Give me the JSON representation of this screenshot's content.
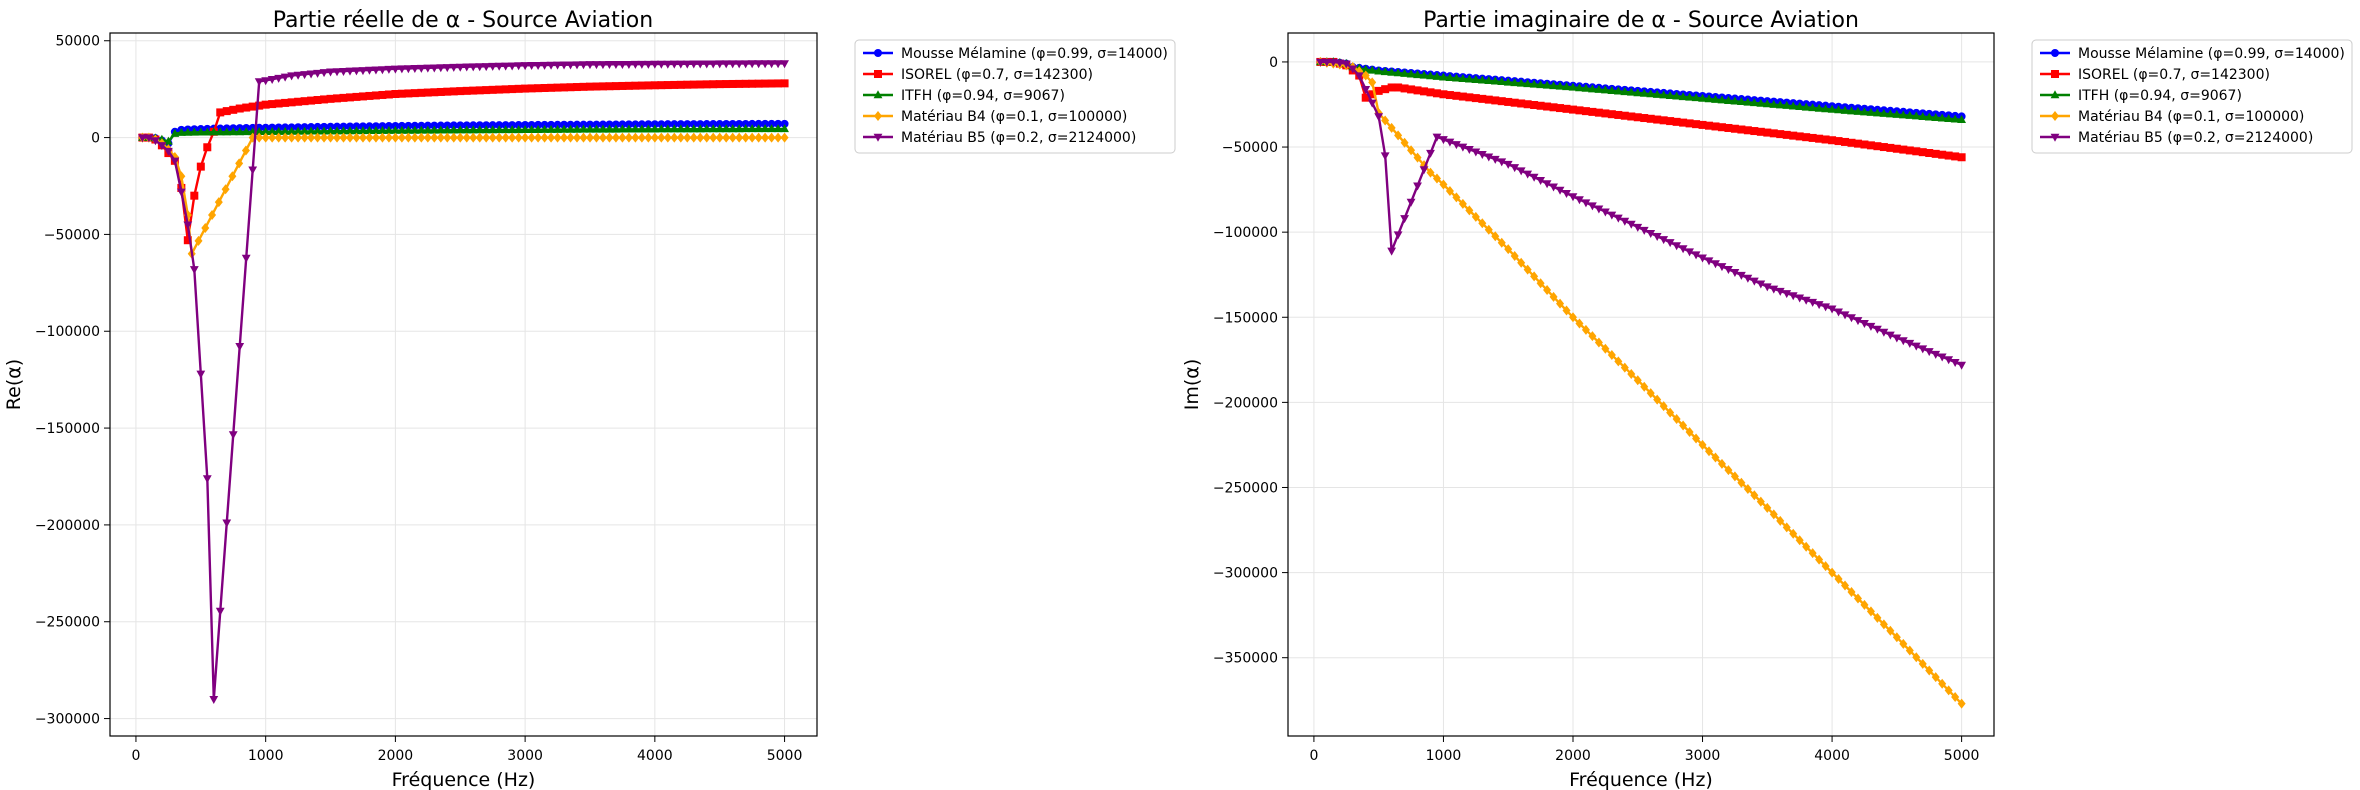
{
  "colors": {
    "Mousse": "#0000ff",
    "ISOREL": "#ff0000",
    "ITFH": "#008000",
    "B4": "#ffa500",
    "B5": "#800080",
    "grid": "#e5e5e5",
    "axes": "#000000"
  },
  "chart_data": [
    {
      "type": "line",
      "title": "Partie réelle de α - Source Aviation",
      "xlabel": "Fréquence (Hz)",
      "ylabel": "Re(α)",
      "xlim": [
        -200,
        5250
      ],
      "ylim": [
        -309000,
        54000
      ],
      "xticks": [
        0,
        1000,
        2000,
        3000,
        4000,
        5000
      ],
      "xtick_labels": [
        "0",
        "1000",
        "2000",
        "3000",
        "4000",
        "5000"
      ],
      "yticks": [
        50000,
        0,
        -50000,
        -100000,
        -150000,
        -200000,
        -250000,
        -300000
      ],
      "ytick_labels": [
        "50000",
        "0",
        "−50000",
        "−100000",
        "−150000",
        "−200000",
        "−250000",
        "−300000"
      ],
      "grid": true,
      "legend": "outside-upper-right",
      "series": [
        {
          "name": "Mousse Mélamine (φ=0.99, σ=14000)",
          "color_key": "Mousse",
          "marker": "circle",
          "points": [
            [
              50,
              0
            ],
            [
              100,
              0
            ],
            [
              150,
              -300
            ],
            [
              200,
              -1500
            ],
            [
              250,
              -3000
            ],
            [
              300,
              3000
            ],
            [
              350,
              4000
            ],
            [
              400,
              4200
            ],
            [
              450,
              4300
            ],
            [
              500,
              4400
            ],
            [
              600,
              4600
            ],
            [
              800,
              4900
            ],
            [
              1000,
              5100
            ],
            [
              1500,
              5600
            ],
            [
              2000,
              6000
            ],
            [
              2500,
              6300
            ],
            [
              3000,
              6500
            ],
            [
              3500,
              6700
            ],
            [
              4000,
              6900
            ],
            [
              4500,
              7000
            ],
            [
              5000,
              7100
            ]
          ]
        },
        {
          "name": "ISOREL (φ=0.7, σ=142300)",
          "color_key": "ISOREL",
          "marker": "square",
          "points": [
            [
              50,
              0
            ],
            [
              100,
              0
            ],
            [
              150,
              -1000
            ],
            [
              200,
              -4000
            ],
            [
              250,
              -8000
            ],
            [
              300,
              -12000
            ],
            [
              350,
              -26000
            ],
            [
              400,
              -53000
            ],
            [
              450,
              -30000
            ],
            [
              500,
              -15000
            ],
            [
              550,
              -5000
            ],
            [
              600,
              3000
            ],
            [
              650,
              13000
            ],
            [
              800,
              15000
            ],
            [
              1000,
              17000
            ],
            [
              1500,
              20000
            ],
            [
              2000,
              22500
            ],
            [
              2500,
              24000
            ],
            [
              3000,
              25300
            ],
            [
              3500,
              26300
            ],
            [
              4000,
              27000
            ],
            [
              4500,
              27600
            ],
            [
              5000,
              28000
            ]
          ]
        },
        {
          "name": "ITFH (φ=0.94, σ=9067)",
          "color_key": "ITFH",
          "marker": "triangle-up",
          "points": [
            [
              50,
              0
            ],
            [
              100,
              0
            ],
            [
              150,
              -300
            ],
            [
              200,
              -1000
            ],
            [
              250,
              -2000
            ],
            [
              300,
              2000
            ],
            [
              350,
              2500
            ],
            [
              400,
              2600
            ],
            [
              500,
              2700
            ],
            [
              1000,
              3000
            ],
            [
              1500,
              3300
            ],
            [
              2000,
              3600
            ],
            [
              2500,
              3800
            ],
            [
              3000,
              4000
            ],
            [
              3500,
              4200
            ],
            [
              4000,
              4300
            ],
            [
              4500,
              4400
            ],
            [
              5000,
              4500
            ]
          ]
        },
        {
          "name": "Matériau B4 (φ=0.1, σ=100000)",
          "color_key": "B4",
          "marker": "diamond",
          "points": [
            [
              50,
              0
            ],
            [
              100,
              0
            ],
            [
              150,
              -1000
            ],
            [
              200,
              -3000
            ],
            [
              250,
              -6000
            ],
            [
              300,
              -10000
            ],
            [
              350,
              -20000
            ],
            [
              400,
              -40000
            ],
            [
              430,
              -60000
            ],
            [
              900,
              0
            ],
            [
              1000,
              0
            ],
            [
              1500,
              0
            ],
            [
              2000,
              0
            ],
            [
              2500,
              0
            ],
            [
              3000,
              0
            ],
            [
              3500,
              0
            ],
            [
              4000,
              0
            ],
            [
              4500,
              0
            ],
            [
              5000,
              0
            ]
          ]
        },
        {
          "name": "Matériau B5 (φ=0.2, σ=2124000)",
          "color_key": "B5",
          "marker": "triangle-down",
          "points": [
            [
              50,
              0
            ],
            [
              100,
              0
            ],
            [
              150,
              -1500
            ],
            [
              200,
              -4000
            ],
            [
              250,
              -7000
            ],
            [
              300,
              -12000
            ],
            [
              350,
              -28000
            ],
            [
              400,
              -45000
            ],
            [
              450,
              -68000
            ],
            [
              500,
              -122000
            ],
            [
              550,
              -176000
            ],
            [
              600,
              -290000
            ],
            [
              950,
              29000
            ],
            [
              1000,
              29500
            ],
            [
              1200,
              32000
            ],
            [
              1500,
              34000
            ],
            [
              2000,
              35500
            ],
            [
              2500,
              36500
            ],
            [
              3000,
              37300
            ],
            [
              3500,
              37800
            ],
            [
              4000,
              38000
            ],
            [
              4500,
              38200
            ],
            [
              5000,
              38300
            ]
          ]
        }
      ]
    },
    {
      "type": "line",
      "title": "Partie imaginaire de α - Source Aviation",
      "xlabel": "Fréquence (Hz)",
      "ylabel": "Im(α)",
      "xlim": [
        -200,
        5250
      ],
      "ylim": [
        -396000,
        17000
      ],
      "xticks": [
        0,
        1000,
        2000,
        3000,
        4000,
        5000
      ],
      "xtick_labels": [
        "0",
        "1000",
        "2000",
        "3000",
        "4000",
        "5000"
      ],
      "yticks": [
        0,
        -50000,
        -100000,
        -150000,
        -200000,
        -250000,
        -300000,
        -350000
      ],
      "ytick_labels": [
        "0",
        "−50000",
        "−100000",
        "−150000",
        "−200000",
        "−250000",
        "−300000",
        "−350000"
      ],
      "grid": true,
      "legend": "outside-upper-right",
      "series": [
        {
          "name": "Mousse Mélamine (φ=0.99, σ=14000)",
          "color_key": "Mousse",
          "marker": "circle",
          "points": [
            [
              50,
              0
            ],
            [
              150,
              0
            ],
            [
              250,
              -1000
            ],
            [
              300,
              -3000
            ],
            [
              400,
              -4000
            ],
            [
              500,
              -5000
            ],
            [
              1000,
              -8000
            ],
            [
              2000,
              -14000
            ],
            [
              3000,
              -20000
            ],
            [
              4000,
              -26000
            ],
            [
              5000,
              -32000
            ]
          ]
        },
        {
          "name": "ISOREL (φ=0.7, σ=142300)",
          "color_key": "ISOREL",
          "marker": "square",
          "points": [
            [
              50,
              0
            ],
            [
              150,
              0
            ],
            [
              250,
              -2000
            ],
            [
              300,
              -5000
            ],
            [
              350,
              -8000
            ],
            [
              400,
              -21000
            ],
            [
              500,
              -17000
            ],
            [
              600,
              -15000
            ],
            [
              650,
              -15000
            ],
            [
              1000,
              -19000
            ],
            [
              2000,
              -28000
            ],
            [
              3000,
              -37000
            ],
            [
              4000,
              -46000
            ],
            [
              5000,
              -56000
            ]
          ]
        },
        {
          "name": "ITFH (φ=0.94, σ=9067)",
          "color_key": "ITFH",
          "marker": "triangle-up",
          "points": [
            [
              50,
              0
            ],
            [
              150,
              0
            ],
            [
              250,
              -1000
            ],
            [
              300,
              -3000
            ],
            [
              400,
              -4500
            ],
            [
              500,
              -5500
            ],
            [
              1000,
              -9000
            ],
            [
              2000,
              -15000
            ],
            [
              3000,
              -21500
            ],
            [
              4000,
              -28000
            ],
            [
              5000,
              -34000
            ]
          ]
        },
        {
          "name": "Matériau B4 (φ=0.1, σ=100000)",
          "color_key": "B4",
          "marker": "diamond",
          "points": [
            [
              50,
              0
            ],
            [
              150,
              -1000
            ],
            [
              250,
              -2000
            ],
            [
              300,
              -3000
            ],
            [
              400,
              -8000
            ],
            [
              450,
              -12000
            ],
            [
              500,
              -30000
            ],
            [
              900,
              -65000
            ],
            [
              1000,
              -72000
            ],
            [
              1500,
              -110000
            ],
            [
              2000,
              -150000
            ],
            [
              2500,
              -187000
            ],
            [
              3000,
              -225000
            ],
            [
              3500,
              -262000
            ],
            [
              4000,
              -300000
            ],
            [
              4500,
              -338000
            ],
            [
              5000,
              -377000
            ]
          ]
        },
        {
          "name": "Matériau B5 (φ=0.2, σ=2124000)",
          "color_key": "B5",
          "marker": "triangle-down",
          "points": [
            [
              50,
              0
            ],
            [
              150,
              0
            ],
            [
              250,
              -1000
            ],
            [
              300,
              -4000
            ],
            [
              350,
              -8000
            ],
            [
              400,
              -16000
            ],
            [
              500,
              -32000
            ],
            [
              550,
              -55000
            ],
            [
              600,
              -111000
            ],
            [
              950,
              -44000
            ],
            [
              1000,
              -45500
            ],
            [
              1500,
              -60000
            ],
            [
              2000,
              -79000
            ],
            [
              2500,
              -97000
            ],
            [
              3000,
              -115000
            ],
            [
              3500,
              -132000
            ],
            [
              4000,
              -145000
            ],
            [
              4500,
              -162000
            ],
            [
              5000,
              -178000
            ]
          ]
        }
      ]
    }
  ]
}
